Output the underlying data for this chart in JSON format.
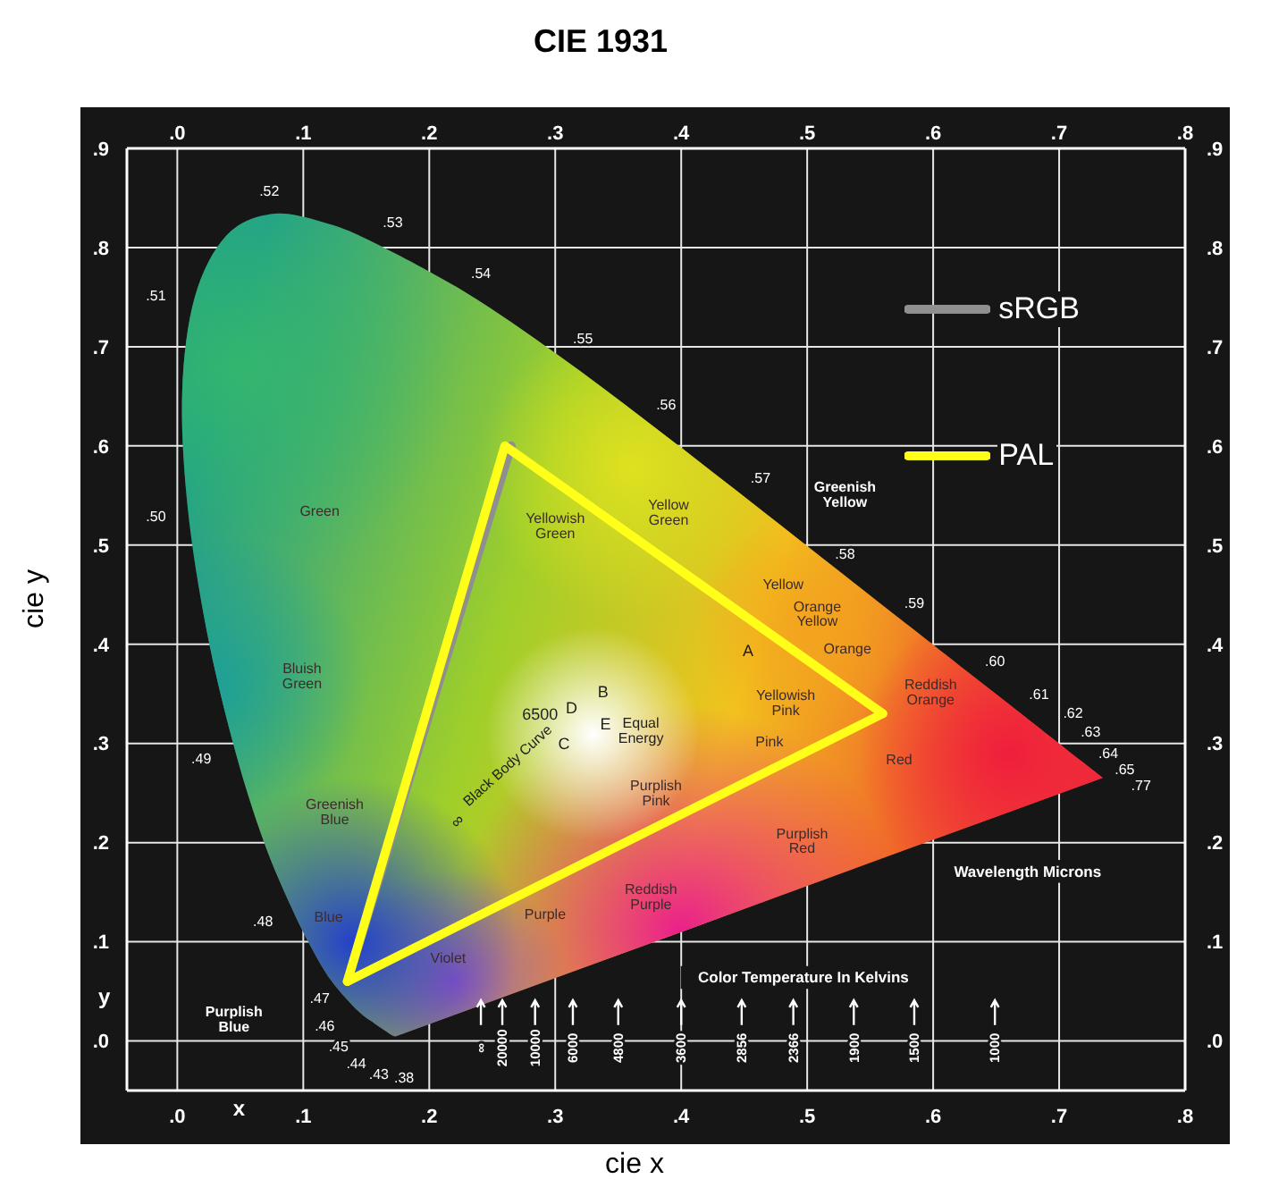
{
  "chart_data": {
    "type": "line",
    "title": "CIE 1931",
    "xlabel": "cie x",
    "ylabel": "cie y",
    "series": [
      {
        "name": "sRGB",
        "color": "#8f8f8f",
        "x": [
          0.135,
          0.265
        ],
        "values": [
          0.06,
          0.6
        ]
      },
      {
        "name": "PAL",
        "color": "#ffff1a",
        "x": [
          0.135,
          0.26,
          0.56
        ],
        "values": [
          0.06,
          0.6,
          0.33
        ]
      },
      {
        "color": "#ffff1a",
        "x": [
          0.135,
          0.56
        ],
        "values": [
          0.06,
          0.33
        ]
      }
    ],
    "xlim": [
      -0.04,
      0.8
    ],
    "xticks": [
      {
        "value": 0,
        "label": ".0"
      },
      {
        "value": 0.1,
        "label": ".1"
      },
      {
        "value": 0.2,
        "label": ".2"
      },
      {
        "value": 0.3,
        "label": ".3"
      },
      {
        "value": 0.4,
        "label": ".4"
      },
      {
        "value": 0.5,
        "label": ".5"
      },
      {
        "value": 0.6,
        "label": ".6"
      },
      {
        "value": 0.7,
        "label": ".7"
      },
      {
        "value": 0.8,
        "label": ".8"
      }
    ],
    "x2lim": [
      -0.04,
      0.8
    ],
    "x2ticks": [
      {
        "value": 0,
        "label": ".0"
      },
      {
        "value": 0.1,
        "label": ".1"
      },
      {
        "value": 0.2,
        "label": ".2"
      },
      {
        "value": 0.3,
        "label": ".3"
      },
      {
        "value": 0.4,
        "label": ".4"
      },
      {
        "value": 0.5,
        "label": ".5"
      },
      {
        "value": 0.6,
        "label": ".6"
      },
      {
        "value": 0.7,
        "label": ".7"
      },
      {
        "value": 0.8,
        "label": ".8"
      }
    ],
    "ylim": [
      -0.05,
      0.9
    ],
    "yticks": [
      {
        "value": 0,
        "label": ".0"
      },
      {
        "value": 0.1,
        "label": ".1"
      },
      {
        "value": 0.2,
        "label": ".2"
      },
      {
        "value": 0.3,
        "label": ".3"
      },
      {
        "value": 0.4,
        "label": ".4"
      },
      {
        "value": 0.5,
        "label": ".5"
      },
      {
        "value": 0.6,
        "label": ".6"
      },
      {
        "value": 0.7,
        "label": ".7"
      },
      {
        "value": 0.8,
        "label": ".8"
      },
      {
        "value": 0.9,
        "label": ".9"
      }
    ],
    "y2lim": [
      -0.05,
      0.9
    ],
    "y2ticks": [
      {
        "value": 0,
        "label": ".0"
      },
      {
        "value": 0.1,
        "label": ".1"
      },
      {
        "value": 0.2,
        "label": ".2"
      },
      {
        "value": 0.3,
        "label": ".3"
      },
      {
        "value": 0.4,
        "label": ".4"
      },
      {
        "value": 0.5,
        "label": ".5"
      },
      {
        "value": 0.6,
        "label": ".6"
      },
      {
        "value": 0.7,
        "label": ".7"
      },
      {
        "value": 0.8,
        "label": ".8"
      },
      {
        "value": 0.9,
        "label": ".9"
      }
    ],
    "grid": true,
    "legend": "top right",
    "annotations": [
      ".52",
      ".53",
      ".54",
      ".55",
      ".56",
      ".57",
      ".58",
      ".59",
      ".60",
      ".61",
      ".62",
      ".63",
      ".64",
      ".65",
      ".77",
      ".51",
      ".50",
      ".49",
      ".48",
      ".47",
      ".46",
      ".45",
      ".44",
      ".43",
      ".38",
      "Green",
      "Yellowish Green",
      "Yellow Green",
      "Greenish Yellow",
      "Yellow",
      "Orange Yellow",
      "Orange",
      "Reddish Orange",
      "Red",
      "Yellowish Pink",
      "Pink",
      "Purplish Pink",
      "Purplish Red",
      "Reddish Purple",
      "Purple",
      "Violet",
      "Blue",
      "Purplish Blue",
      "Greenish Blue",
      "Bluish Green",
      "Black Body Curve",
      "6500",
      "A",
      "B",
      "C",
      "D",
      "E",
      "Equal Energy",
      "∞",
      "∞",
      "20000",
      "10000",
      "6000",
      "4800",
      "3600",
      "2856",
      "2366",
      "1900",
      "1500",
      "1000",
      "Color Temperature In Kelvins",
      "Wavelength Microns",
      "x",
      "y"
    ]
  }
}
